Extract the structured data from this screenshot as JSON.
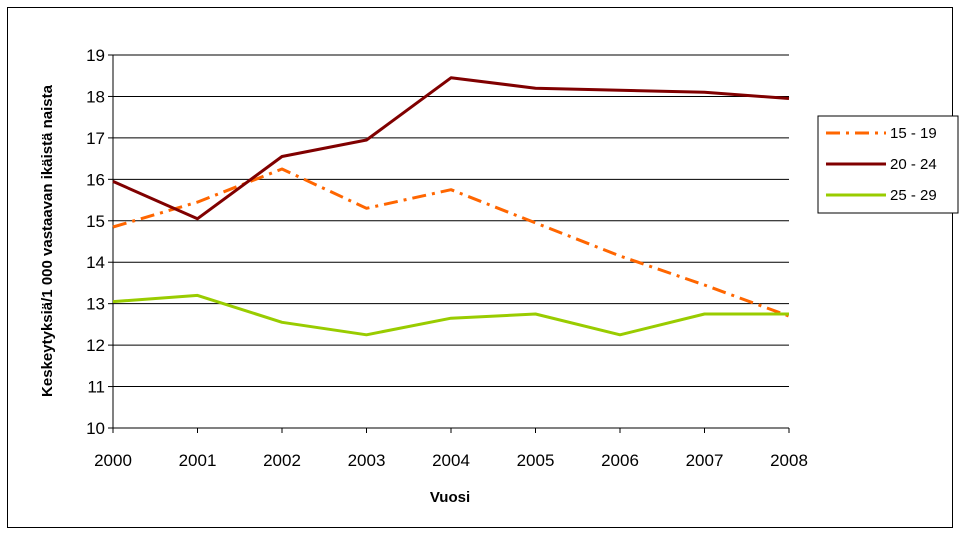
{
  "chart_data": {
    "type": "line",
    "title": "",
    "xlabel": "Vuosi",
    "ylabel": "Keskeytyksiä/1 000 vastaavan ikäistä naista",
    "x": [
      "2000",
      "2001",
      "2002",
      "2003",
      "2004",
      "2005",
      "2006",
      "2007",
      "2008"
    ],
    "ylim": [
      10,
      19
    ],
    "yticks": [
      "10",
      "11",
      "12",
      "13",
      "14",
      "15",
      "16",
      "17",
      "18",
      "19"
    ],
    "grid": "horizontal",
    "legend_position": "right",
    "series": [
      {
        "name": "15 - 19",
        "values": [
          14.85,
          15.45,
          16.25,
          15.3,
          15.75,
          14.95,
          14.15,
          13.45,
          12.7
        ],
        "color": "#ff6600",
        "style": "dash-dot"
      },
      {
        "name": "20 - 24",
        "values": [
          15.95,
          15.05,
          16.55,
          16.95,
          18.45,
          18.2,
          18.15,
          18.1,
          17.95
        ],
        "color": "#800000",
        "style": "solid"
      },
      {
        "name": "25 - 29",
        "values": [
          13.05,
          13.2,
          12.55,
          12.25,
          12.65,
          12.75,
          12.25,
          12.75,
          12.75
        ],
        "color": "#99cc00",
        "style": "solid"
      }
    ]
  }
}
